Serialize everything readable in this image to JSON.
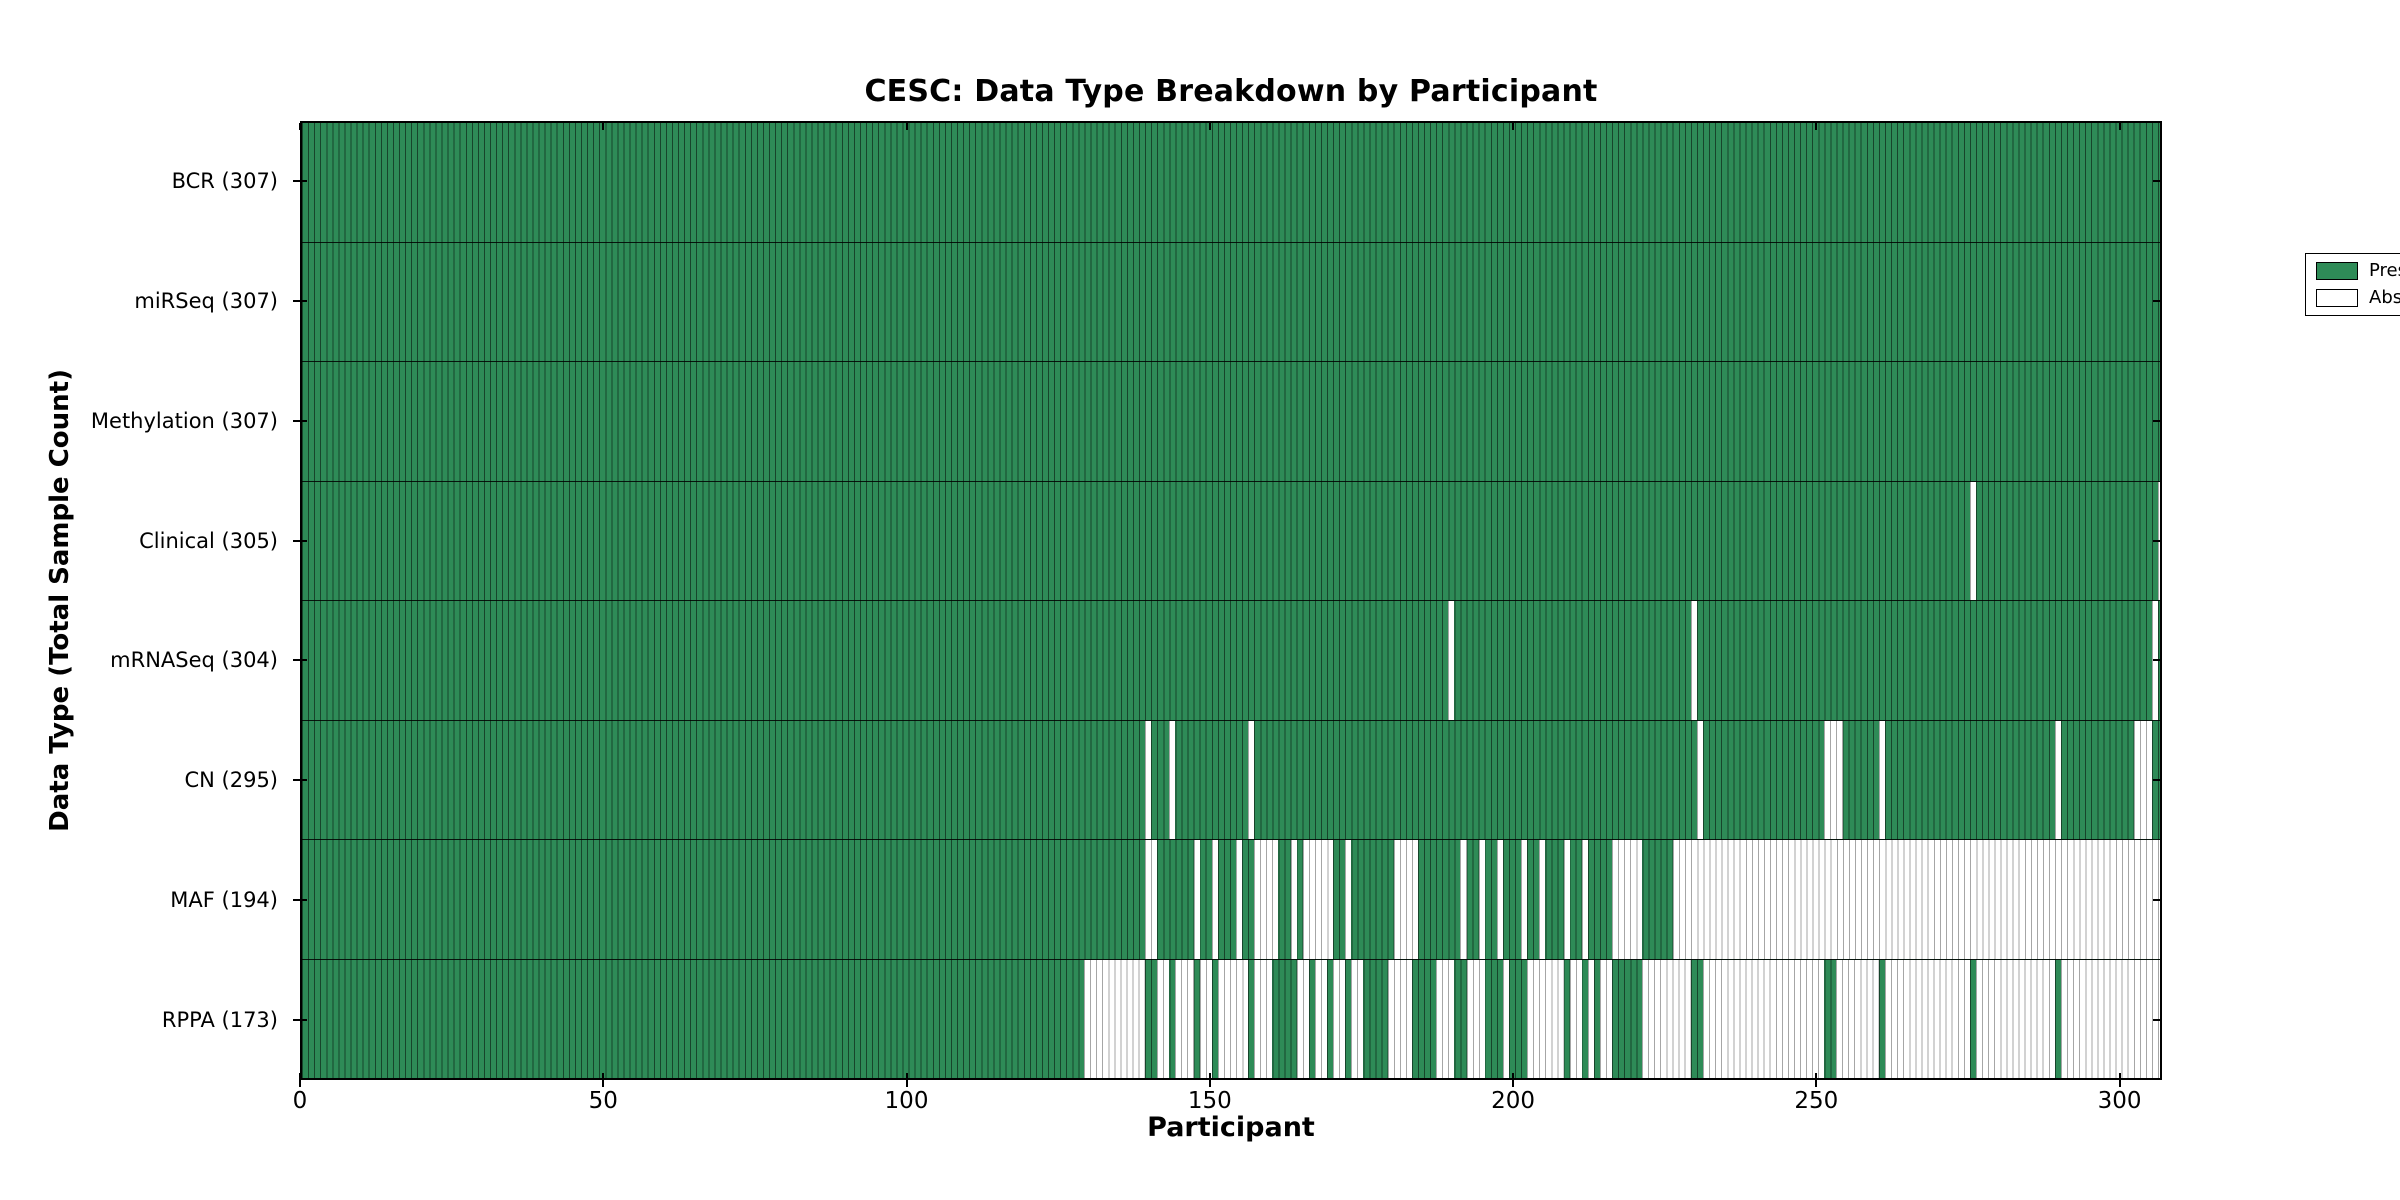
{
  "chart_data": {
    "type": "heatmap",
    "title": "CESC: Data Type Breakdown by Participant",
    "x_axis": {
      "label": "Participant",
      "ticks": [
        0,
        50,
        100,
        150,
        200,
        250,
        300
      ],
      "range": [
        0,
        307
      ]
    },
    "y_axis": {
      "label": "Data Type (Total Sample Count)"
    },
    "n_participants": 307,
    "colors": {
      "present": "#2e8b57",
      "absent": "#ffffff",
      "present_edge": "rgba(0,0,0,0.5)",
      "absent_edge": "rgba(0,0,0,0.35)"
    },
    "legend": {
      "position": "upper right",
      "entries": [
        {
          "label": "Present",
          "color": "#2e8b57"
        },
        {
          "label": "Absent",
          "color": "#ffffff"
        }
      ]
    },
    "rows": [
      {
        "data_type": "BCR",
        "label": "BCR (307)",
        "present_count": 307,
        "absent_ranges": []
      },
      {
        "data_type": "miRSeq",
        "label": "miRSeq (307)",
        "present_count": 307,
        "absent_ranges": []
      },
      {
        "data_type": "Methylation",
        "label": "Methylation (307)",
        "present_count": 307,
        "absent_ranges": []
      },
      {
        "data_type": "Clinical",
        "label": "Clinical (305)",
        "present_count": 305,
        "absent_ranges": [
          [
            275,
            275
          ],
          [
            306,
            306
          ]
        ]
      },
      {
        "data_type": "mRNASeq",
        "label": "mRNASeq (304)",
        "present_count": 304,
        "absent_ranges": [
          [
            189,
            189
          ],
          [
            229,
            229
          ],
          [
            305,
            305
          ]
        ]
      },
      {
        "data_type": "CN",
        "label": "CN (295)",
        "present_count": 295,
        "absent_ranges": [
          [
            139,
            139
          ],
          [
            143,
            143
          ],
          [
            156,
            156
          ],
          [
            230,
            230
          ],
          [
            251,
            253
          ],
          [
            260,
            260
          ],
          [
            289,
            289
          ],
          [
            302,
            304
          ]
        ]
      },
      {
        "data_type": "MAF",
        "label": "MAF (194)",
        "present_count": 194,
        "absent_ranges": [
          [
            139,
            140
          ],
          [
            147,
            147
          ],
          [
            150,
            150
          ],
          [
            154,
            154
          ],
          [
            157,
            160
          ],
          [
            163,
            163
          ],
          [
            165,
            169
          ],
          [
            172,
            172
          ],
          [
            180,
            183
          ],
          [
            191,
            191
          ],
          [
            194,
            194
          ],
          [
            197,
            197
          ],
          [
            201,
            201
          ],
          [
            204,
            204
          ],
          [
            208,
            208
          ],
          [
            211,
            211
          ],
          [
            216,
            220
          ],
          [
            226,
            306
          ]
        ]
      },
      {
        "data_type": "RPPA",
        "label": "RPPA (173)",
        "present_count": 173,
        "absent_ranges": [
          [
            129,
            138
          ],
          [
            141,
            142
          ],
          [
            144,
            146
          ],
          [
            148,
            149
          ],
          [
            151,
            155
          ],
          [
            157,
            159
          ],
          [
            164,
            165
          ],
          [
            167,
            168
          ],
          [
            170,
            171
          ],
          [
            173,
            174
          ],
          [
            179,
            182
          ],
          [
            187,
            189
          ],
          [
            192,
            194
          ],
          [
            198,
            198
          ],
          [
            202,
            207
          ],
          [
            209,
            210
          ],
          [
            212,
            212
          ],
          [
            214,
            215
          ],
          [
            221,
            228
          ],
          [
            231,
            250
          ],
          [
            253,
            259
          ],
          [
            261,
            274
          ],
          [
            276,
            288
          ],
          [
            290,
            306
          ]
        ]
      }
    ]
  }
}
